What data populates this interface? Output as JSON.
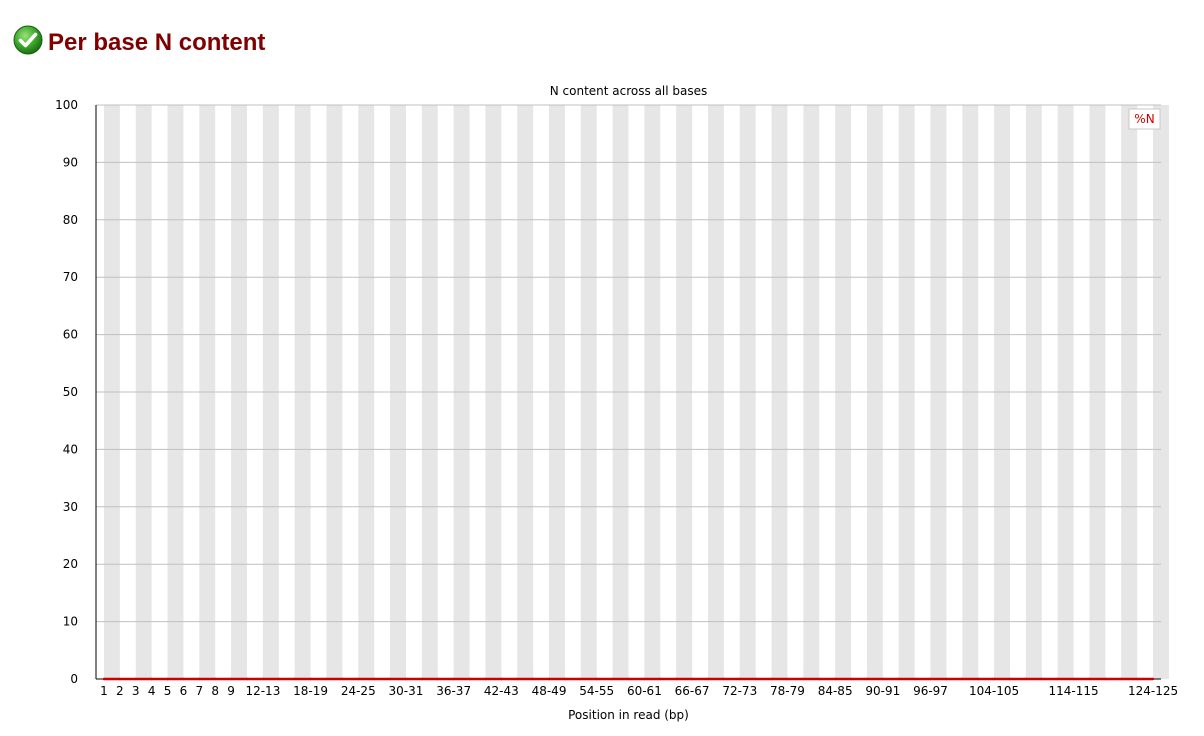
{
  "header": {
    "icon": "check-circle-icon",
    "title": "Per base N content",
    "title_color": "#800000"
  },
  "chart_data": {
    "type": "line",
    "title": "N content across all bases",
    "xlabel": "Position in read (bp)",
    "ylabel": "",
    "ylim": [
      0,
      100
    ],
    "yticks": [
      0,
      10,
      20,
      30,
      40,
      50,
      60,
      70,
      80,
      90,
      100
    ],
    "grid": true,
    "legend_position": "top-right",
    "categories": [
      "1",
      "2",
      "3",
      "4",
      "5",
      "6",
      "7",
      "8",
      "9",
      "10-11",
      "12-13",
      "14-15",
      "16-17",
      "18-19",
      "20-21",
      "22-23",
      "24-25",
      "26-27",
      "28-29",
      "30-31",
      "32-33",
      "34-35",
      "36-37",
      "38-39",
      "40-41",
      "42-43",
      "44-45",
      "46-47",
      "48-49",
      "50-51",
      "52-53",
      "54-55",
      "56-57",
      "58-59",
      "60-61",
      "62-63",
      "64-65",
      "66-67",
      "68-69",
      "70-71",
      "72-73",
      "74-75",
      "76-77",
      "78-79",
      "80-81",
      "82-83",
      "84-85",
      "86-87",
      "88-89",
      "90-91",
      "92-93",
      "94-95",
      "96-97",
      "98-99",
      "100-101",
      "102-103",
      "104-105",
      "106-107",
      "108-109",
      "110-111",
      "112-113",
      "114-115",
      "116-117",
      "118-119",
      "120-121",
      "122-123",
      "124-125"
    ],
    "tick_labels": [
      "1",
      "2",
      "3",
      "4",
      "5",
      "6",
      "7",
      "8",
      "9",
      "12-13",
      "18-19",
      "24-25",
      "30-31",
      "36-37",
      "42-43",
      "48-49",
      "54-55",
      "60-61",
      "66-67",
      "72-73",
      "78-79",
      "84-85",
      "90-91",
      "96-97",
      "104-105",
      "114-115",
      "124-125"
    ],
    "series": [
      {
        "name": "%N",
        "color": "#cc0000",
        "values": [
          0,
          0,
          0,
          0,
          0,
          0,
          0,
          0,
          0,
          0,
          0,
          0,
          0,
          0,
          0,
          0,
          0,
          0,
          0,
          0,
          0,
          0,
          0,
          0,
          0,
          0,
          0,
          0,
          0,
          0,
          0,
          0,
          0,
          0,
          0,
          0,
          0,
          0,
          0,
          0,
          0,
          0,
          0,
          0,
          0,
          0,
          0,
          0,
          0,
          0,
          0,
          0,
          0,
          0,
          0,
          0,
          0,
          0,
          0,
          0,
          0,
          0,
          0,
          0,
          0,
          0,
          0
        ]
      }
    ],
    "band_color": "#e6e6e6",
    "grid_color": "#c0c0c0"
  }
}
